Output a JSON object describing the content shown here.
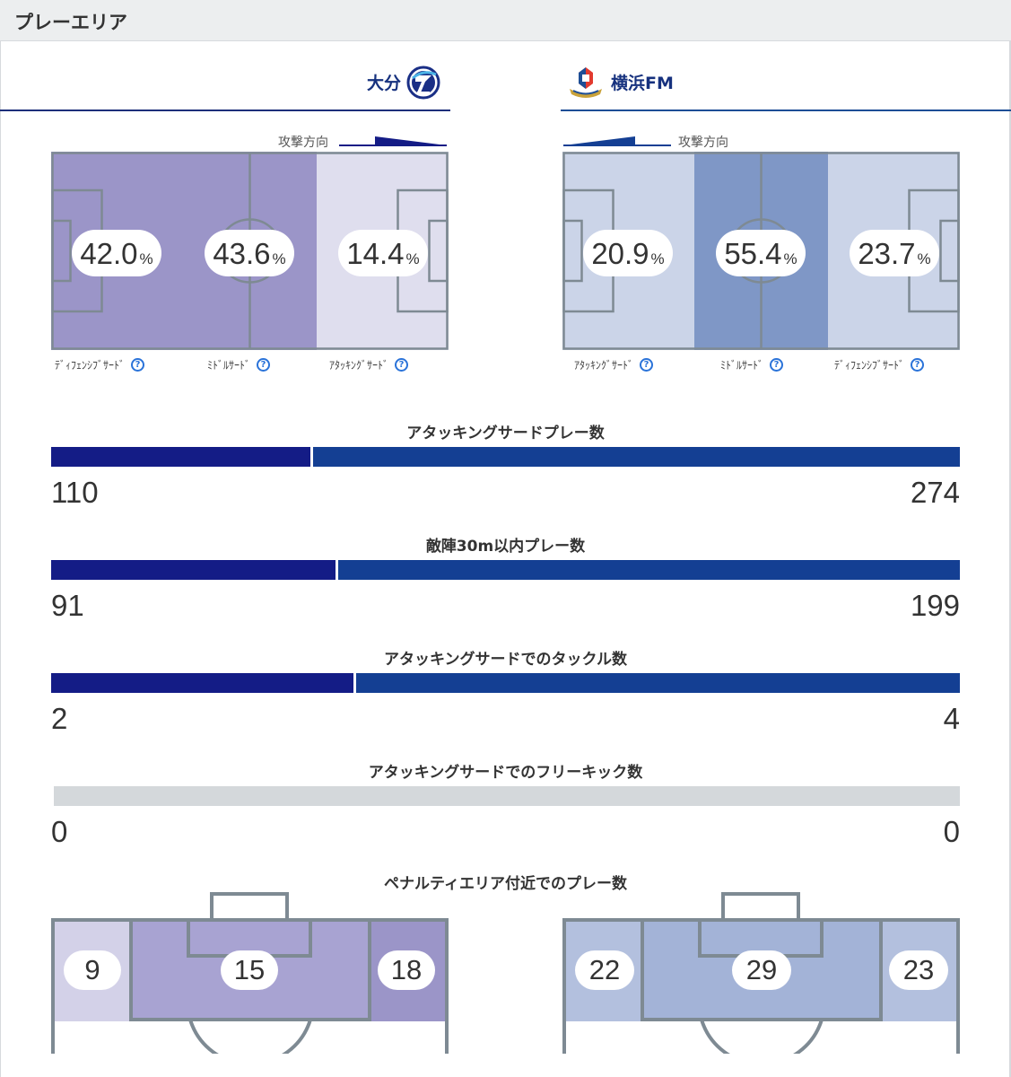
{
  "page": {
    "title": "プレーエリア"
  },
  "teams": {
    "home": {
      "name": "大分",
      "emblem_icon": "oita-trinita-emblem"
    },
    "away": {
      "name": "横浜FM",
      "emblem_icon": "yokohama-fmarinos-emblem"
    }
  },
  "attack_direction_label": "攻撃方向",
  "help_icon_glyph": "?",
  "play_area": {
    "unit": "%",
    "home": {
      "zones": [
        {
          "label": "ﾃﾞｨﾌｪﾝｼﾌﾞｻｰﾄﾞ",
          "value": "42.0",
          "fill": 0.42
        },
        {
          "label": "ﾐﾄﾞﾙｻｰﾄﾞ",
          "value": "43.6",
          "fill": 0.436
        },
        {
          "label": "ｱﾀｯｷﾝｸﾞｻｰﾄﾞ",
          "value": "14.4",
          "fill": 0.144
        }
      ]
    },
    "away": {
      "zones": [
        {
          "label": "ｱﾀｯｷﾝｸﾞｻｰﾄﾞ",
          "value": "20.9",
          "fill": 0.209
        },
        {
          "label": "ﾐﾄﾞﾙｻｰﾄﾞ",
          "value": "55.4",
          "fill": 0.554
        },
        {
          "label": "ﾃﾞｨﾌｪﾝｼﾌﾞｻｰﾄﾞ",
          "value": "23.7",
          "fill": 0.237
        }
      ]
    }
  },
  "stats": [
    {
      "title": "アタッキングサードプレー数",
      "home": "110",
      "away": "274"
    },
    {
      "title": "敵陣30m以内プレー数",
      "home": "91",
      "away": "199"
    },
    {
      "title": "アタッキングサードでのタックル数",
      "home": "2",
      "away": "4"
    },
    {
      "title": "アタッキングサードでのフリーキック数",
      "home": "0",
      "away": "0"
    }
  ],
  "penalty_area": {
    "title": "ペナルティエリア付近でのプレー数",
    "home": {
      "left": "9",
      "center": "15",
      "right": "18"
    },
    "away": {
      "left": "22",
      "center": "29",
      "right": "23"
    }
  },
  "colors": {
    "home_bar": "#141c86",
    "away_bar": "#143f93",
    "empty_bar": "#d4d8db",
    "home_zone_high": "#9b95c8",
    "home_zone_low": "#dfdeee",
    "away_zone_high": "#7f97c6",
    "away_zone_low": "#cbd4e8",
    "pitch_line": "#7e8a93"
  }
}
